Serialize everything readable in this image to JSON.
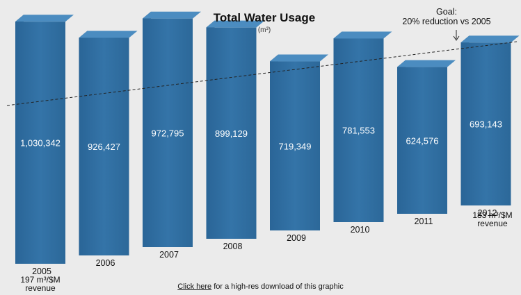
{
  "chart_data": {
    "type": "bar",
    "title": "Total Water Usage",
    "subtitle": "(m³)",
    "categories": [
      "2005",
      "2006",
      "2007",
      "2008",
      "2009",
      "2010",
      "2011",
      "2012"
    ],
    "values": [
      1030342,
      926427,
      972795,
      899129,
      719349,
      781553,
      624576,
      693143
    ],
    "value_labels": [
      "1,030,342",
      "926,427",
      "972,795",
      "899,129",
      "719,349",
      "781,553",
      "624,576",
      "693,143"
    ],
    "goal_annotation": {
      "line1": "Goal:",
      "line2": "20% reduction vs 2005"
    },
    "notes": {
      "start": {
        "line1": "197 m³/$M",
        "line2": "revenue"
      },
      "end": {
        "line1": "183 m³/$M",
        "line2": "revenue"
      }
    },
    "bar_color": "#2f6d9f",
    "grid": false,
    "legend": "none"
  },
  "footer": {
    "link_text": "Click here",
    "rest_text": " for a high-res download of this graphic"
  }
}
